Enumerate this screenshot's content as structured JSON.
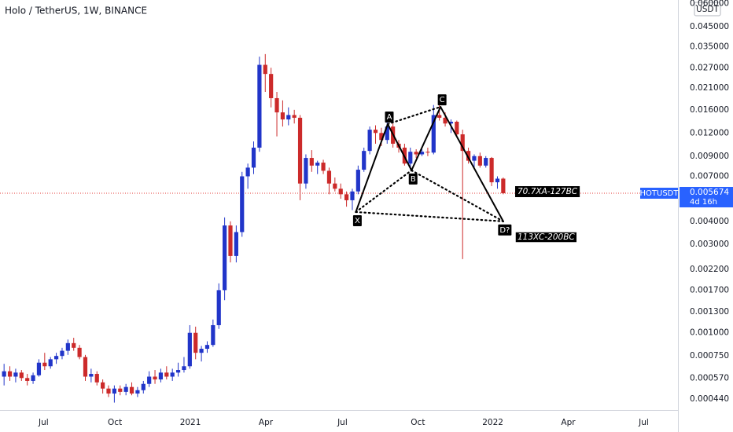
{
  "chart_data": {
    "type": "candlestick",
    "title": "Holo / TetherUS, 1W, BINANCE",
    "currency": "USDT",
    "log_scale": true,
    "up_color": "#2135c9",
    "down_color": "#cc2a2a",
    "ylim": [
      0.000383,
      0.0627
    ],
    "yticks": [
      {
        "value": 0.06,
        "label": "0.060000"
      },
      {
        "value": 0.045,
        "label": "0.045000"
      },
      {
        "value": 0.035,
        "label": "0.035000"
      },
      {
        "value": 0.027,
        "label": "0.027000"
      },
      {
        "value": 0.021,
        "label": "0.021000"
      },
      {
        "value": 0.016,
        "label": "0.016000"
      },
      {
        "value": 0.012,
        "label": "0.012000"
      },
      {
        "value": 0.009,
        "label": "0.009000"
      },
      {
        "value": 0.007,
        "label": "0.007000"
      },
      {
        "value": 0.004,
        "label": "0.004000"
      },
      {
        "value": 0.003,
        "label": "0.003000"
      },
      {
        "value": 0.0022,
        "label": "0.002200"
      },
      {
        "value": 0.0017,
        "label": "0.001700"
      },
      {
        "value": 0.0013,
        "label": "0.001300"
      },
      {
        "value": 0.001,
        "label": "0.001000"
      },
      {
        "value": 0.00075,
        "label": "0.000750"
      },
      {
        "value": 0.00057,
        "label": "0.000570"
      },
      {
        "value": 0.00044,
        "label": "0.000440"
      }
    ],
    "xlim": [
      -0.7,
      116.1
    ],
    "xticks": [
      {
        "value": 6.8,
        "label": "Jul"
      },
      {
        "value": 19.1,
        "label": "Oct"
      },
      {
        "value": 32.1,
        "label": "2021"
      },
      {
        "value": 45.1,
        "label": "Apr"
      },
      {
        "value": 58.3,
        "label": "Jul"
      },
      {
        "value": 71.3,
        "label": "Oct"
      },
      {
        "value": 84.2,
        "label": "2022"
      },
      {
        "value": 97.2,
        "label": "Apr"
      },
      {
        "value": 110.2,
        "label": "Jul"
      }
    ],
    "x": [
      0,
      1,
      2,
      3,
      4,
      5,
      6,
      7,
      8,
      9,
      10,
      11,
      12,
      13,
      14,
      15,
      16,
      17,
      18,
      19,
      20,
      21,
      22,
      23,
      24,
      25,
      26,
      27,
      28,
      29,
      30,
      31,
      32,
      33,
      34,
      35,
      36,
      37,
      38,
      39,
      40,
      41,
      42,
      43,
      44,
      45,
      46,
      47,
      48,
      49,
      50,
      51,
      52,
      53,
      54,
      55,
      56,
      57,
      58,
      59,
      60,
      61,
      62,
      63,
      64,
      65,
      66,
      67,
      68,
      69,
      70,
      71,
      72,
      73,
      74,
      75,
      76,
      77,
      78,
      79,
      80,
      81,
      82,
      83,
      84,
      85,
      86
    ],
    "open": [
      0.00058,
      0.00062,
      0.00058,
      0.00061,
      0.00057,
      0.00055,
      0.00059,
      0.00069,
      0.00066,
      0.00072,
      0.00075,
      0.0008,
      0.00088,
      0.00083,
      0.00074,
      0.00058,
      0.0006,
      0.00054,
      0.0005,
      0.00047,
      0.0005,
      0.00048,
      0.00051,
      0.00047,
      0.00049,
      0.00053,
      0.00058,
      0.00056,
      0.00061,
      0.00058,
      0.00061,
      0.00063,
      0.00066,
      0.001,
      0.00078,
      0.00082,
      0.00086,
      0.0011,
      0.0017,
      0.0038,
      0.0026,
      0.0035,
      0.007,
      0.0078,
      0.01,
      0.028,
      0.025,
      0.0185,
      0.0155,
      0.0142,
      0.015,
      0.0145,
      0.0064,
      0.0088,
      0.008,
      0.0083,
      0.0075,
      0.0064,
      0.006,
      0.0056,
      0.0052,
      0.0058,
      0.0076,
      0.0096,
      0.0125,
      0.012,
      0.011,
      0.013,
      0.0105,
      0.01,
      0.0082,
      0.0095,
      0.0092,
      0.0095,
      0.0094,
      0.015,
      0.0145,
      0.0135,
      0.0138,
      0.0118,
      0.0096,
      0.0085,
      0.009,
      0.008,
      0.0088,
      0.0065,
      0.0068
    ],
    "high": [
      0.00068,
      0.00066,
      0.00064,
      0.00063,
      0.0006,
      0.00061,
      0.00072,
      0.00078,
      0.00074,
      0.00078,
      0.00083,
      0.00092,
      0.00094,
      0.00086,
      0.00076,
      0.00064,
      0.00062,
      0.00056,
      0.00052,
      0.00052,
      0.00052,
      0.00053,
      0.00054,
      0.00051,
      0.00055,
      0.00062,
      0.00063,
      0.00064,
      0.00066,
      0.00064,
      0.00069,
      0.00074,
      0.0011,
      0.00108,
      0.00085,
      0.0009,
      0.00118,
      0.00185,
      0.0042,
      0.004,
      0.0038,
      0.0074,
      0.0082,
      0.0108,
      0.031,
      0.032,
      0.027,
      0.02,
      0.018,
      0.0165,
      0.016,
      0.015,
      0.0092,
      0.0097,
      0.0085,
      0.0086,
      0.0078,
      0.0069,
      0.0064,
      0.0058,
      0.006,
      0.008,
      0.01,
      0.013,
      0.0132,
      0.0128,
      0.014,
      0.0135,
      0.011,
      0.0105,
      0.01,
      0.0098,
      0.0098,
      0.01,
      0.017,
      0.0175,
      0.0155,
      0.0142,
      0.014,
      0.0125,
      0.01,
      0.0092,
      0.0094,
      0.009,
      0.0089,
      0.007,
      0.0069
    ],
    "low": [
      0.00052,
      0.00055,
      0.00054,
      0.00055,
      0.00052,
      0.00053,
      0.00058,
      0.00063,
      0.00064,
      0.00068,
      0.00072,
      0.00076,
      0.0008,
      0.00072,
      0.00055,
      0.00054,
      0.00052,
      0.00047,
      0.00045,
      0.00042,
      0.00046,
      0.00046,
      0.00046,
      0.00045,
      0.00047,
      0.00051,
      0.00053,
      0.00054,
      0.00056,
      0.00055,
      0.00058,
      0.00061,
      0.00064,
      0.00072,
      0.0007,
      0.00078,
      0.00084,
      0.00105,
      0.0015,
      0.0024,
      0.0024,
      0.0033,
      0.006,
      0.0072,
      0.0095,
      0.02,
      0.0165,
      0.0115,
      0.013,
      0.0132,
      0.0135,
      0.0052,
      0.006,
      0.0074,
      0.0072,
      0.0072,
      0.0056,
      0.0058,
      0.0053,
      0.0048,
      0.0046,
      0.0056,
      0.0074,
      0.0092,
      0.0105,
      0.0102,
      0.0105,
      0.01,
      0.0094,
      0.008,
      0.0076,
      0.0088,
      0.009,
      0.009,
      0.0092,
      0.014,
      0.013,
      0.012,
      0.0115,
      0.0025,
      0.0082,
      0.0078,
      0.0078,
      0.0078,
      0.0062,
      0.006,
      0.0056
    ],
    "close": [
      0.00062,
      0.00058,
      0.00061,
      0.00057,
      0.00055,
      0.00059,
      0.00069,
      0.00066,
      0.00072,
      0.00075,
      0.0008,
      0.00088,
      0.00083,
      0.00074,
      0.00058,
      0.0006,
      0.00054,
      0.0005,
      0.00047,
      0.0005,
      0.00048,
      0.00051,
      0.00047,
      0.00049,
      0.00053,
      0.00058,
      0.00056,
      0.00061,
      0.00058,
      0.00061,
      0.00063,
      0.00066,
      0.001,
      0.00078,
      0.00082,
      0.00086,
      0.0011,
      0.0017,
      0.0038,
      0.0026,
      0.0035,
      0.007,
      0.0078,
      0.01,
      0.028,
      0.025,
      0.0185,
      0.0155,
      0.0142,
      0.015,
      0.0145,
      0.0064,
      0.0088,
      0.008,
      0.0083,
      0.0075,
      0.0064,
      0.006,
      0.0056,
      0.0052,
      0.0058,
      0.0076,
      0.0096,
      0.0125,
      0.012,
      0.011,
      0.013,
      0.0105,
      0.01,
      0.0082,
      0.0095,
      0.0092,
      0.0095,
      0.0094,
      0.015,
      0.0145,
      0.0135,
      0.0138,
      0.0118,
      0.0096,
      0.0085,
      0.009,
      0.008,
      0.0088,
      0.0065,
      0.0068,
      0.005674
    ],
    "last_price": {
      "name": "HOTUSDT",
      "value": 0.005674,
      "countdown": "4d 16h",
      "color": "#2962ff",
      "line_color": "#e53935"
    },
    "pattern_points": [
      {
        "label": "X",
        "x": 60.6,
        "y": 0.00449
      },
      {
        "label": "A",
        "x": 66.1,
        "y": 0.0134
      },
      {
        "label": "B",
        "x": 70.2,
        "y": 0.00754
      },
      {
        "label": "C",
        "x": 75.2,
        "y": 0.0166
      },
      {
        "label": "D?",
        "x": 86,
        "y": 0.004
      }
    ],
    "annotations": [
      "70.7XA-127BC",
      "113XC-200BC"
    ]
  }
}
